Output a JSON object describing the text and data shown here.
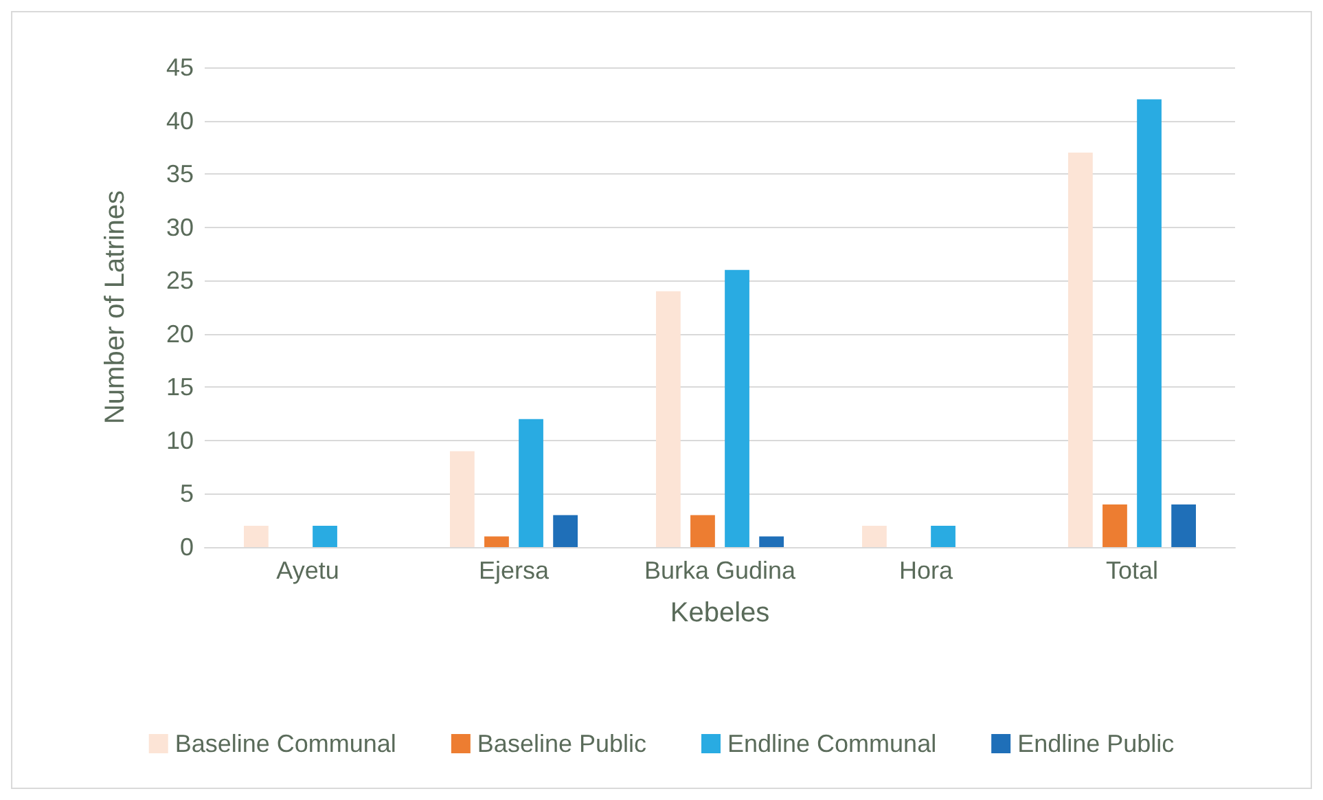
{
  "chart_data": {
    "type": "bar",
    "xlabel": "Kebeles",
    "ylabel": "Number of Latrines",
    "categories": [
      "Ayetu",
      "Ejersa",
      "Burka Gudina",
      "Hora",
      "Total"
    ],
    "series": [
      {
        "name": "Baseline Communal",
        "color": "#fce4d6",
        "values": [
          2,
          9,
          24,
          2,
          37
        ]
      },
      {
        "name": "Baseline Public",
        "color": "#ed7d31",
        "values": [
          0,
          1,
          3,
          0,
          4
        ]
      },
      {
        "name": "Endline Communal",
        "color": "#29abe2",
        "values": [
          2,
          12,
          26,
          2,
          42
        ]
      },
      {
        "name": "Endline Public",
        "color": "#1f6fb8",
        "values": [
          0,
          3,
          1,
          0,
          4
        ]
      }
    ],
    "ylim": [
      0,
      45
    ],
    "yticks": [
      0,
      5,
      10,
      15,
      20,
      25,
      30,
      35,
      40,
      45
    ],
    "grid": "y",
    "legend": "bottom"
  }
}
